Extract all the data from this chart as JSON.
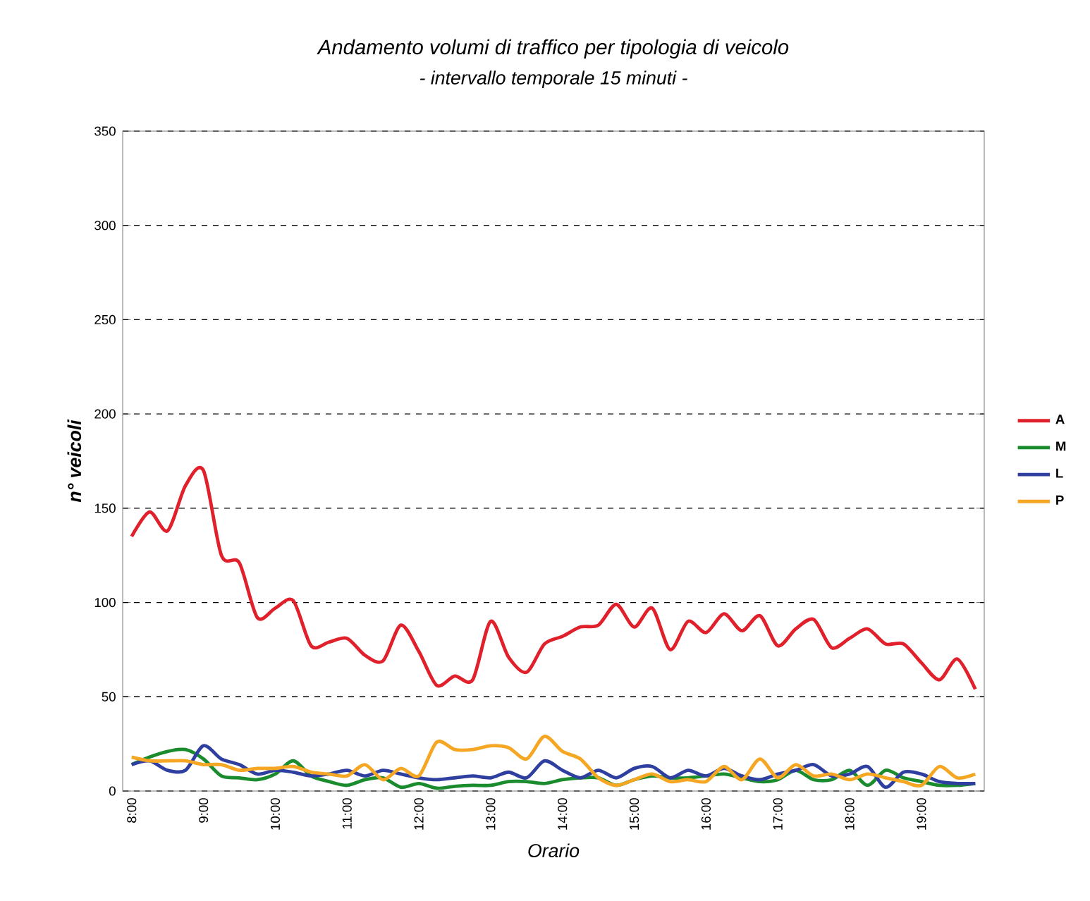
{
  "chart_data": {
    "type": "line",
    "title": "Andamento volumi di traffico per tipologia di veicolo",
    "subtitle": "- intervallo temporale 15 minuti -",
    "xlabel": "Orario",
    "ylabel": "n° veicoli",
    "x": [
      8,
      8.25,
      8.5,
      8.75,
      9,
      9.25,
      9.5,
      9.75,
      10,
      10.25,
      10.5,
      10.75,
      11,
      11.25,
      11.5,
      11.75,
      12,
      12.25,
      12.5,
      12.75,
      13,
      13.25,
      13.5,
      13.75,
      14,
      14.25,
      14.5,
      14.75,
      15,
      15.25,
      15.5,
      15.75,
      16,
      16.25,
      16.5,
      16.75,
      17,
      17.25,
      17.5,
      17.75,
      18,
      18.25,
      18.5,
      18.75,
      19,
      19.25,
      19.5,
      19.75
    ],
    "xlim": [
      7.875,
      19.875
    ],
    "xticks": [
      {
        "value": 8,
        "label": "8:00"
      },
      {
        "value": 9,
        "label": "9:00"
      },
      {
        "value": 10,
        "label": "10:00"
      },
      {
        "value": 11,
        "label": "11:00"
      },
      {
        "value": 12,
        "label": "12:00"
      },
      {
        "value": 13,
        "label": "13:00"
      },
      {
        "value": 14,
        "label": "14:00"
      },
      {
        "value": 15,
        "label": "15:00"
      },
      {
        "value": 16,
        "label": "16:00"
      },
      {
        "value": 17,
        "label": "17:00"
      },
      {
        "value": 18,
        "label": "18:00"
      },
      {
        "value": 19,
        "label": "19:00"
      }
    ],
    "ylim": [
      0,
      350
    ],
    "yticks": [
      0,
      50,
      100,
      150,
      200,
      250,
      300,
      350
    ],
    "grid": "y",
    "legend": "right",
    "line_style": "solid",
    "series": [
      {
        "name": "A",
        "color": "#e0202a",
        "values": [
          135,
          148,
          138,
          162,
          170,
          125,
          121,
          92,
          97,
          101,
          77,
          79,
          81,
          72,
          69,
          88,
          74,
          56,
          61,
          59,
          90,
          71,
          63,
          78,
          82,
          87,
          88,
          99,
          87,
          97,
          75,
          90,
          84,
          94,
          85,
          93,
          77,
          86,
          91,
          76,
          81,
          86,
          78,
          78,
          68,
          59,
          70,
          54
        ]
      },
      {
        "name": "M",
        "color": "#1a8c2e",
        "values": [
          14,
          18,
          21,
          22,
          17,
          8,
          7,
          6,
          9,
          16,
          8,
          5,
          3,
          6,
          7,
          2,
          4,
          1.5,
          2.5,
          3,
          3,
          5,
          5,
          4,
          6,
          7,
          7,
          3,
          6,
          8,
          7,
          7,
          8,
          9,
          7,
          5,
          6,
          11,
          6,
          6,
          11,
          3,
          11,
          7,
          5,
          3,
          3,
          4
        ]
      },
      {
        "name": "L",
        "color": "#2e3fa0",
        "values": [
          14,
          16,
          11,
          11,
          24,
          17,
          14,
          9,
          11,
          10,
          8,
          9,
          11,
          8,
          11,
          9,
          7,
          6,
          7,
          8,
          7,
          10,
          7,
          16,
          11,
          7,
          11,
          7,
          12,
          13,
          7,
          11,
          8,
          12,
          8,
          6,
          9,
          11,
          14,
          8,
          9,
          13,
          2,
          10,
          9,
          5,
          4,
          4
        ]
      },
      {
        "name": "P",
        "color": "#f5a623",
        "values": [
          18,
          16,
          16,
          16,
          14,
          14,
          11,
          12,
          12,
          13,
          10,
          9,
          8,
          14,
          6,
          12,
          8,
          26,
          22,
          22,
          24,
          23,
          17,
          29,
          21,
          17,
          7,
          3,
          6,
          9,
          5,
          6,
          5,
          13,
          6,
          17,
          7,
          14,
          8,
          9,
          6,
          9,
          7,
          5,
          3,
          13,
          7,
          9
        ]
      }
    ]
  }
}
